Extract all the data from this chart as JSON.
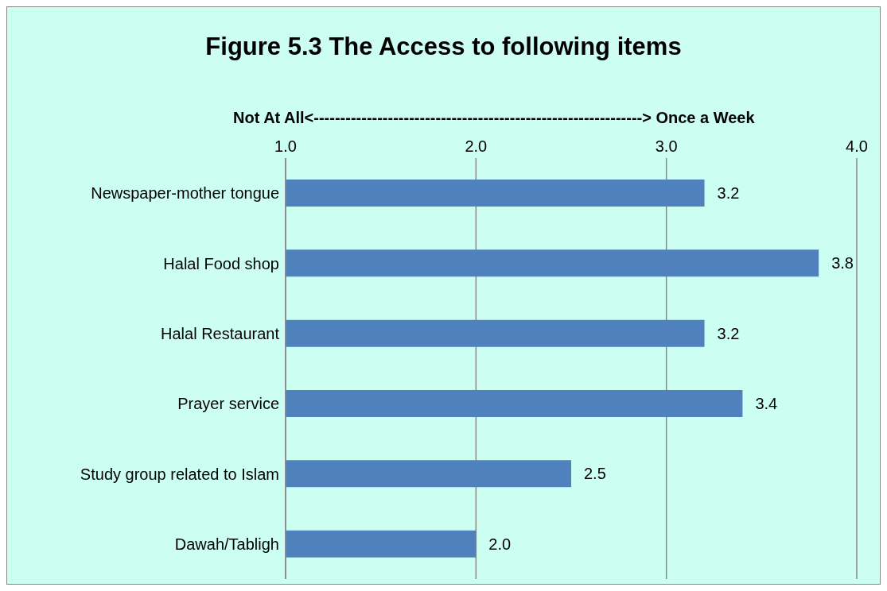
{
  "chart_data": {
    "type": "bar",
    "orientation": "horizontal",
    "title": "Figure 5.3 The Access to following items",
    "xlabel": "Not At All<--------------------------------------------------------------> Once a Week",
    "categories": [
      "Newspaper-mother tongue",
      "Halal Food shop",
      "Halal Restaurant",
      "Prayer service",
      "Study group related to Islam",
      "Dawah/Tabligh"
    ],
    "values": [
      3.2,
      3.8,
      3.2,
      3.4,
      2.5,
      2.0
    ],
    "value_labels": [
      "3.2",
      "3.8",
      "3.2",
      "3.4",
      "2.5",
      "2.0"
    ],
    "color": "#4f81bd",
    "xlim": [
      1,
      4
    ],
    "xticks": [
      {
        "value": 1,
        "label": "1.0"
      },
      {
        "value": 2,
        "label": "2.0"
      },
      {
        "value": 3,
        "label": "3.0"
      },
      {
        "value": 4,
        "label": "4.0"
      }
    ],
    "grid": "x"
  }
}
